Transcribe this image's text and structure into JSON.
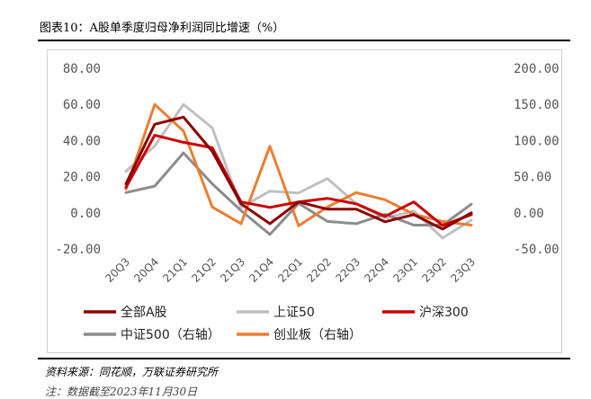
{
  "header": {
    "title": "图表10：A股单季度归母净利润同比增速（%）"
  },
  "footer": {
    "source": "资料来源：同花顺，万联证券研究所",
    "date_note": "注：数据截至2023年11月30日"
  },
  "colors": {
    "text": "#555555",
    "frame": "#cfcfcf"
  },
  "chart_data": {
    "type": "line",
    "title": "",
    "categories": [
      "20Q3",
      "20Q4",
      "21Q1",
      "21Q2",
      "21Q3",
      "21Q4",
      "22Q1",
      "22Q2",
      "22Q3",
      "22Q4",
      "23Q1",
      "23Q2",
      "23Q3"
    ],
    "ylim_left": [
      -20,
      80
    ],
    "yticks_left": [
      "80.00",
      "60.00",
      "40.00",
      "20.00",
      "0.00",
      "-20.00"
    ],
    "ylim_right": [
      -50,
      200
    ],
    "yticks_right": [
      "200.00",
      "150.00",
      "100.00",
      "50.00",
      "0.00",
      "-50.00"
    ],
    "grid": false,
    "legend_position": "bottom",
    "series": [
      {
        "name": "全部A股",
        "axis": "left",
        "color": "#8b0000",
        "values": [
          16,
          49,
          53,
          34,
          5,
          -6,
          6,
          2,
          2,
          -5,
          -1,
          -9,
          0
        ]
      },
      {
        "name": "上证50",
        "axis": "left",
        "color": "#c0c0c0",
        "values": [
          23,
          37,
          60,
          47,
          3,
          12,
          11,
          19,
          5,
          -3,
          1,
          -14,
          -4
        ]
      },
      {
        "name": "沪深300",
        "axis": "left",
        "color": "#cc0000",
        "values": [
          14,
          43,
          39,
          36,
          6,
          3,
          6,
          8,
          5,
          -2,
          6,
          -7,
          -1
        ]
      },
      {
        "name": "中证500（右轴）",
        "axis": "right",
        "color": "#8c8c8c",
        "values": [
          28,
          37,
          83,
          40,
          3,
          -30,
          13,
          -12,
          -15,
          -2,
          -17,
          -17,
          12
        ]
      },
      {
        "name": "创业板（右轴）",
        "axis": "right",
        "color": "#ed7d31",
        "values": [
          33,
          150,
          113,
          8,
          -15,
          92,
          -18,
          8,
          28,
          18,
          -2,
          -12,
          -17
        ]
      }
    ]
  }
}
